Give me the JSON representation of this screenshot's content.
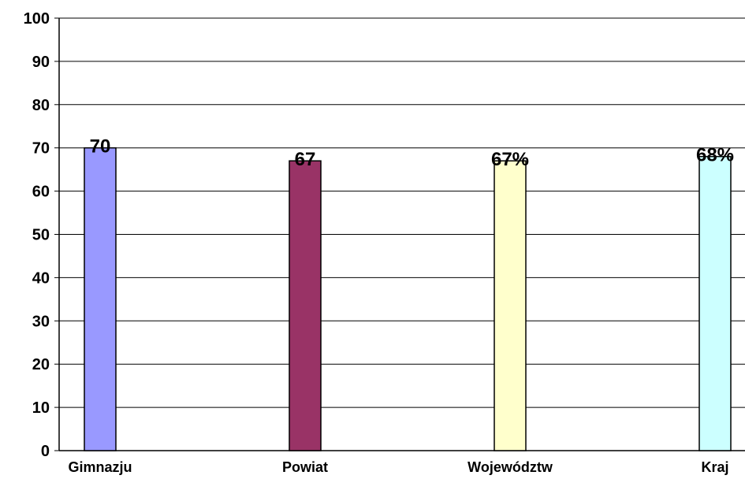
{
  "chart_data": {
    "type": "bar",
    "categories": [
      "Gimnazju",
      "Powiat",
      "Województw",
      "Kraj"
    ],
    "values": [
      70,
      67,
      67,
      68
    ],
    "data_labels": [
      "70",
      "67",
      "67%",
      "68%"
    ],
    "colors": [
      "#9999ff",
      "#993366",
      "#ffffcc",
      "#ccffff"
    ],
    "ylim": [
      0,
      100
    ],
    "yticks": [
      0,
      10,
      20,
      30,
      40,
      50,
      60,
      70,
      80,
      90,
      100
    ],
    "grid": true,
    "legend": "none"
  }
}
